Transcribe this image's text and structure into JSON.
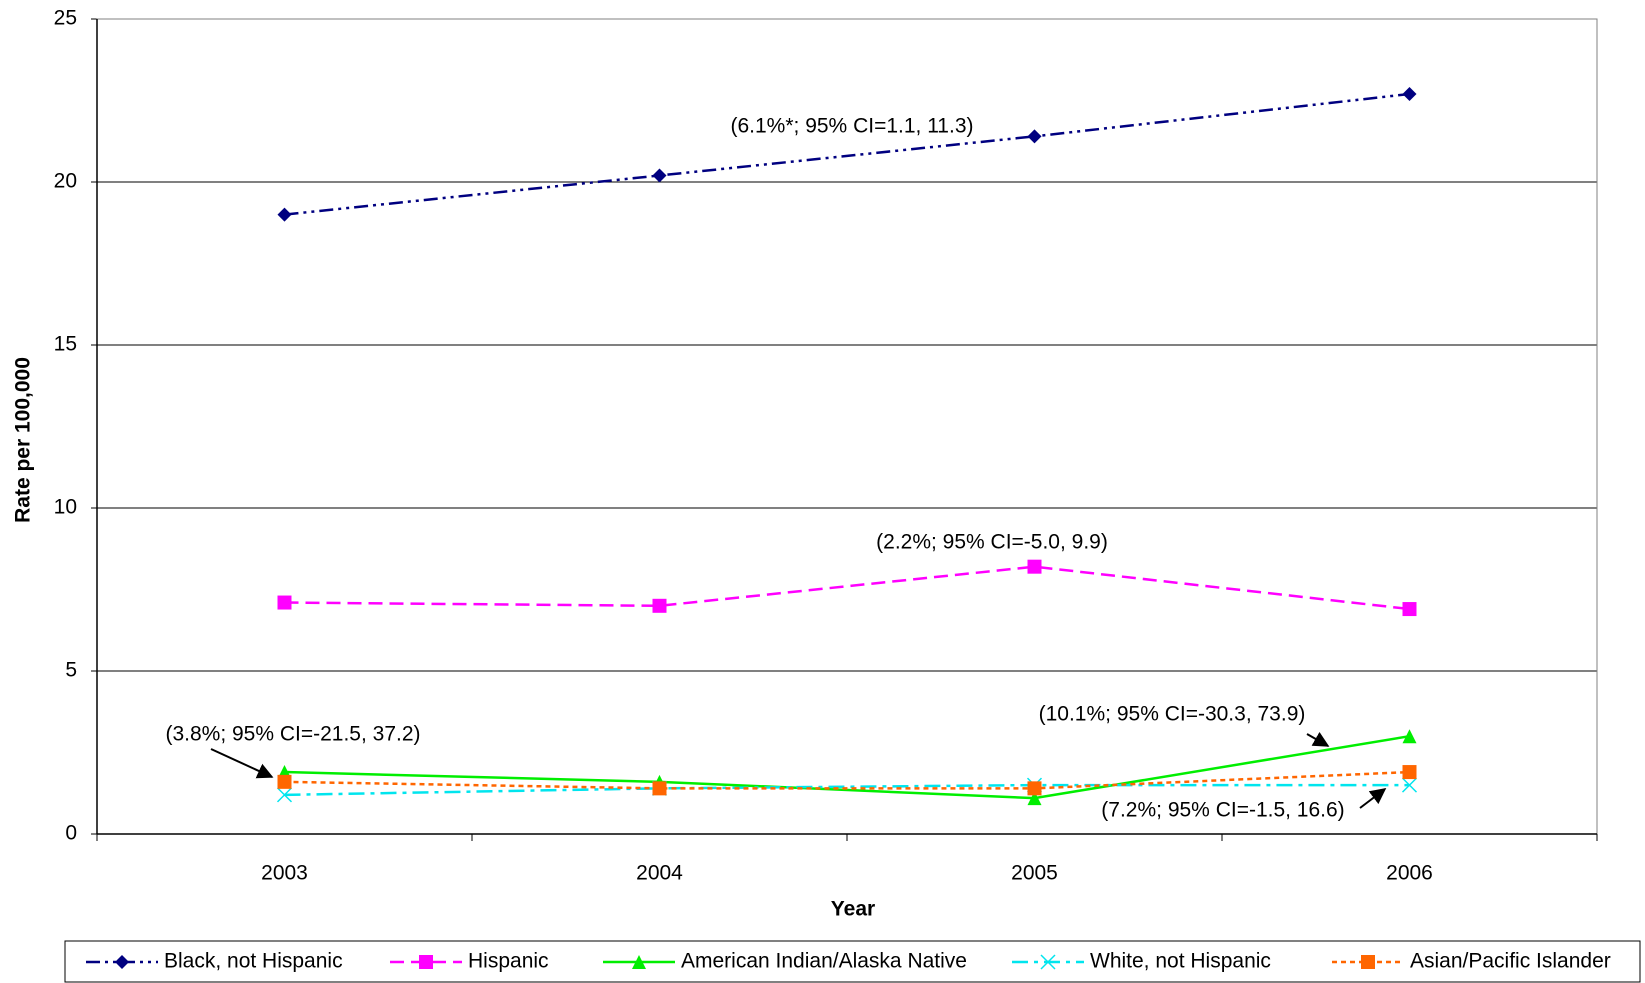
{
  "chart_data": {
    "type": "line",
    "x_label": "Year",
    "y_label": "Rate per 100,000",
    "categories": [
      "2003",
      "2004",
      "2005",
      "2006"
    ],
    "ylim": [
      0,
      25
    ],
    "yticks": [
      0,
      5,
      10,
      15,
      20,
      25
    ],
    "grid": true,
    "series": [
      {
        "name": "Black, not Hispanic",
        "color": "#000080",
        "marker": "diamond",
        "dash": "dash-dot-dot",
        "values": [
          19.0,
          20.2,
          21.4,
          22.7
        ]
      },
      {
        "name": "Hispanic",
        "color": "#ff00ff",
        "marker": "square",
        "dash": "dash",
        "values": [
          7.1,
          7.0,
          8.2,
          6.9
        ]
      },
      {
        "name": "American Indian/Alaska Native",
        "color": "#00ee00",
        "marker": "triangle",
        "dash": "solid",
        "values": [
          1.9,
          1.6,
          1.1,
          3.0
        ]
      },
      {
        "name": "White, not Hispanic",
        "color": "#00e5ee",
        "marker": "x",
        "dash": "dash-dot",
        "values": [
          1.2,
          1.4,
          1.5,
          1.5
        ]
      },
      {
        "name": "Asian/Pacific Islander",
        "color": "#ff6600",
        "marker": "square",
        "dash": "dot",
        "values": [
          1.6,
          1.4,
          1.4,
          1.9
        ]
      }
    ],
    "annotations": [
      "(6.1%*; 95% CI=1.1, 11.3)",
      "(2.2%; 95% CI=-5.0, 9.9)",
      "(3.8%; 95% CI=-21.5, 37.2)",
      "(10.1%; 95% CI=-30.3, 73.9)",
      "(7.2%; 95% CI=-1.5, 16.6)"
    ],
    "legend": "bottom"
  }
}
